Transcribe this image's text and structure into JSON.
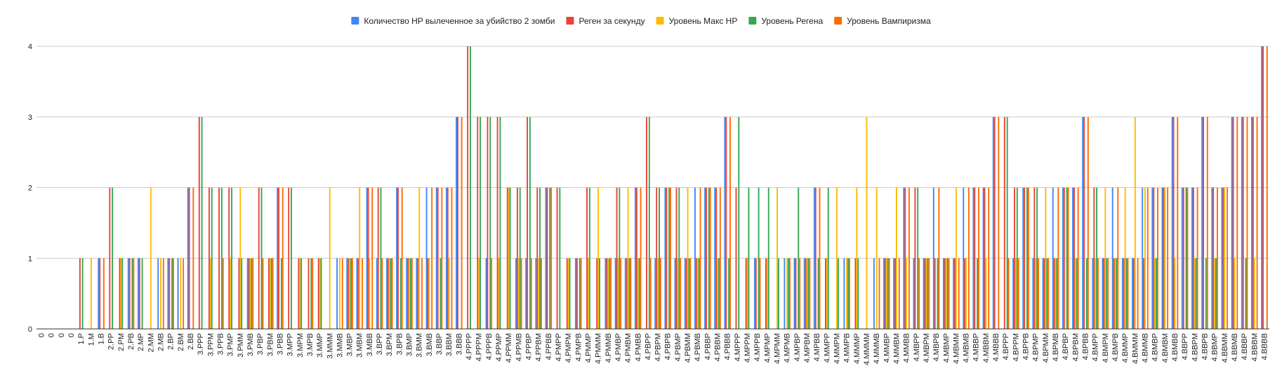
{
  "chart_data": {
    "type": "bar",
    "title": "",
    "xlabel": "",
    "ylabel": "",
    "ylim": [
      0,
      4
    ],
    "yticks": [
      0,
      1,
      2,
      3,
      4
    ],
    "grid": true,
    "legend_position": "top",
    "categories": [
      "0",
      "0",
      "0",
      "0",
      "1.P",
      "1.M",
      "1.B",
      "2.PP",
      "2.PM",
      "2.PB",
      "2.MP",
      "2.MM",
      "2.MB",
      "2.BP",
      "2.BM",
      "2.BB",
      "3.PPP",
      "3.PPM",
      "3.PPB",
      "3.PMP",
      "3.PMM",
      "3.PMB",
      "3.PBP",
      "3.PBM",
      "3.PBB",
      "3.MPP",
      "3.MPM",
      "3.MPB",
      "3.MMP",
      "3.MMM",
      "3.MMB",
      "3.MBP",
      "3.MBM",
      "3.MBB",
      "3.BPP",
      "3.BPM",
      "3.BPB",
      "3.BMP",
      "3.BMM",
      "3.BMB",
      "3.BBP",
      "3.BBM",
      "3.BBB",
      "4.PPPP",
      "4.PPPM",
      "4.PPPB",
      "4.PPMP",
      "4.PPMM",
      "4.PPMB",
      "4.PPBP",
      "4.PPBM",
      "4.PPBB",
      "4.PMPP",
      "4.PMPM",
      "4.PMPB",
      "4.PMMP",
      "4.PMMM",
      "4.PMMB",
      "4.PMBP",
      "4.PMBM",
      "4.PMBB",
      "4.PBPP",
      "4.PBPM",
      "4.PBPB",
      "4.PBMP",
      "4.PBMM",
      "4.PBMB",
      "4.PBBP",
      "4.PBBM",
      "4.PBBB",
      "4.MPPP",
      "4.MPPM",
      "4.MPPB",
      "4.MPMP",
      "4.MPMM",
      "4.MPMB",
      "4.MPBP",
      "4.MPBM",
      "4.MPBB",
      "4.MMPP",
      "4.MMPM",
      "4.MMPB",
      "4.MMMP",
      "4.MMMM",
      "4.MMMB",
      "4.MMBP",
      "4.MMBM",
      "4.MMBB",
      "4.MBPP",
      "4.MBPM",
      "4.MBPB",
      "4.MBMP",
      "4.MBMM",
      "4.MBMB",
      "4.MBBP",
      "4.MBBM",
      "4.MBBB",
      "4.BPPP",
      "4.BPPM",
      "4.BPPB",
      "4.BPMP",
      "4.BPMM",
      "4.BPMB",
      "4.BPBP",
      "4.BPBM",
      "4.BPBB",
      "4.BMPP",
      "4.BMPM",
      "4.BMPB",
      "4.BMMP",
      "4.BMMM",
      "4.BMMB",
      "4.BMBP",
      "4.BMBM",
      "4.BMBB",
      "4.BBPP",
      "4.BBPM",
      "4.BBPB",
      "4.BBMP",
      "4.BBMM",
      "4.BBMB",
      "4.BBBP",
      "4.BBBM",
      "4.BBBB"
    ],
    "series": [
      {
        "name": "Количество HP вылеченное за убийство 2 зомби",
        "color": "#4285F4",
        "values": [
          0,
          0,
          0,
          0,
          0,
          0,
          1,
          0,
          0,
          1,
          1,
          0,
          1,
          1,
          1,
          2,
          0,
          0,
          0,
          0,
          0,
          1,
          0,
          0,
          2,
          0,
          0,
          0,
          0,
          0,
          1,
          1,
          1,
          2,
          1,
          1,
          2,
          1,
          1,
          2,
          2,
          2,
          3,
          0,
          0,
          1,
          0,
          0,
          1,
          1,
          1,
          2,
          0,
          0,
          1,
          0,
          0,
          1,
          1,
          1,
          2,
          0,
          1,
          2,
          1,
          1,
          2,
          2,
          2,
          3,
          0,
          0,
          1,
          0,
          0,
          1,
          1,
          1,
          2,
          0,
          0,
          1,
          0,
          0,
          1,
          1,
          1,
          2,
          1,
          1,
          2,
          1,
          1,
          2,
          2,
          2,
          3,
          0,
          1,
          2,
          1,
          1,
          2,
          2,
          2,
          3,
          1,
          1,
          2,
          1,
          1,
          2,
          2,
          2,
          3,
          2,
          2,
          3,
          2,
          2,
          3,
          3,
          3,
          4
        ]
      },
      {
        "name": "Реген за секунду",
        "color": "#EA4335",
        "values": [
          0,
          0,
          0,
          0,
          1,
          0,
          1,
          2,
          1,
          1,
          1,
          0,
          0,
          1,
          0,
          2,
          3,
          2,
          2,
          2,
          1,
          1,
          2,
          1,
          2,
          2,
          1,
          1,
          1,
          0,
          0,
          1,
          1,
          2,
          2,
          1,
          2,
          1,
          1,
          1,
          2,
          2,
          3,
          4,
          3,
          3,
          3,
          2,
          2,
          3,
          2,
          2,
          2,
          1,
          1,
          2,
          1,
          1,
          2,
          1,
          2,
          3,
          2,
          2,
          2,
          1,
          1,
          2,
          2,
          3,
          2,
          1,
          1,
          1,
          0,
          0,
          1,
          1,
          2,
          1,
          0,
          0,
          1,
          0,
          0,
          1,
          1,
          2,
          2,
          1,
          1,
          1,
          1,
          1,
          2,
          2,
          3,
          3,
          2,
          2,
          2,
          1,
          1,
          2,
          2,
          3,
          2,
          1,
          1,
          1,
          1,
          1,
          2,
          2,
          3,
          2,
          2,
          3,
          2,
          2,
          3,
          3,
          3,
          4
        ]
      },
      {
        "name": "Уровень Макс HP",
        "color": "#FBBC04",
        "values": [
          0,
          0,
          0,
          0,
          0,
          1,
          0,
          0,
          1,
          0,
          0,
          2,
          1,
          0,
          1,
          0,
          0,
          1,
          0,
          1,
          2,
          1,
          0,
          1,
          0,
          0,
          1,
          0,
          1,
          2,
          1,
          1,
          2,
          1,
          0,
          1,
          0,
          1,
          2,
          1,
          0,
          1,
          0,
          0,
          1,
          0,
          1,
          2,
          1,
          0,
          1,
          0,
          0,
          1,
          0,
          1,
          2,
          1,
          1,
          2,
          1,
          0,
          1,
          0,
          1,
          2,
          1,
          0,
          1,
          0,
          0,
          1,
          0,
          1,
          2,
          1,
          0,
          1,
          0,
          1,
          2,
          1,
          2,
          3,
          2,
          1,
          2,
          1,
          0,
          1,
          0,
          1,
          2,
          1,
          0,
          1,
          0,
          0,
          1,
          0,
          1,
          2,
          1,
          0,
          1,
          0,
          1,
          2,
          1,
          2,
          3,
          2,
          1,
          2,
          1,
          0,
          1,
          0,
          1,
          2,
          1,
          0,
          1,
          0
        ]
      },
      {
        "name": "Уровень Регена",
        "color": "#34A853",
        "values": [
          0,
          0,
          0,
          0,
          1,
          0,
          0,
          2,
          1,
          1,
          1,
          0,
          0,
          1,
          0,
          0,
          3,
          2,
          2,
          2,
          1,
          1,
          2,
          1,
          1,
          2,
          1,
          1,
          1,
          0,
          0,
          1,
          0,
          0,
          2,
          1,
          1,
          1,
          0,
          0,
          1,
          0,
          0,
          4,
          3,
          3,
          3,
          2,
          2,
          3,
          2,
          2,
          2,
          1,
          1,
          2,
          1,
          1,
          2,
          1,
          1,
          3,
          2,
          2,
          2,
          1,
          1,
          2,
          1,
          1,
          3,
          2,
          2,
          2,
          1,
          1,
          2,
          1,
          1,
          2,
          1,
          1,
          1,
          0,
          0,
          1,
          0,
          0,
          2,
          1,
          1,
          1,
          0,
          0,
          1,
          0,
          0,
          3,
          2,
          2,
          2,
          1,
          1,
          2,
          1,
          1,
          2,
          1,
          1,
          1,
          0,
          0,
          1,
          0,
          0,
          2,
          1,
          1,
          1,
          0,
          0,
          1,
          0,
          0
        ]
      },
      {
        "name": "Уровень Вампиризма",
        "color": "#FF6D01",
        "values": [
          0,
          0,
          0,
          0,
          0,
          0,
          1,
          0,
          0,
          1,
          0,
          0,
          1,
          1,
          1,
          2,
          0,
          0,
          1,
          0,
          0,
          1,
          1,
          1,
          2,
          0,
          0,
          1,
          0,
          0,
          1,
          1,
          1,
          2,
          1,
          1,
          2,
          1,
          1,
          2,
          2,
          2,
          3,
          0,
          0,
          1,
          0,
          0,
          1,
          1,
          1,
          2,
          0,
          0,
          1,
          0,
          0,
          1,
          1,
          1,
          2,
          1,
          1,
          2,
          1,
          1,
          2,
          2,
          2,
          3,
          0,
          0,
          1,
          0,
          0,
          1,
          1,
          1,
          2,
          0,
          0,
          1,
          0,
          0,
          1,
          1,
          1,
          2,
          1,
          1,
          2,
          1,
          1,
          2,
          2,
          2,
          3,
          1,
          1,
          2,
          1,
          1,
          2,
          2,
          2,
          3,
          1,
          1,
          2,
          1,
          1,
          2,
          2,
          2,
          3,
          2,
          2,
          3,
          2,
          2,
          3,
          3,
          3,
          4
        ]
      }
    ]
  }
}
